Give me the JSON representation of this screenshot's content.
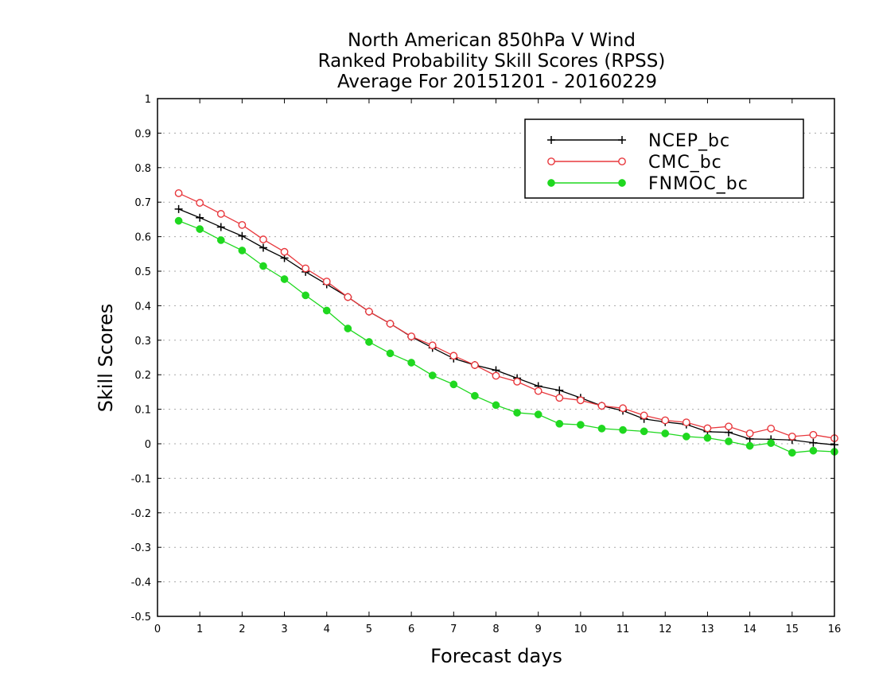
{
  "chart_data": {
    "type": "line",
    "title_lines": [
      "North American 850hPa V Wind",
      "Ranked Probability Skill Scores (RPSS)",
      "Average For 20151201 - 20160229"
    ],
    "xlabel": "Forecast days",
    "ylabel": "Skill Scores",
    "xlim": [
      0,
      16
    ],
    "ylim": [
      -0.5,
      1
    ],
    "x_ticks": [
      "0",
      "1",
      "2",
      "3",
      "4",
      "5",
      "6",
      "7",
      "8",
      "9",
      "10",
      "11",
      "12",
      "13",
      "14",
      "15",
      "16"
    ],
    "y_ticks": [
      "1",
      "0.9",
      "0.8",
      "0.7",
      "0.6",
      "0.5",
      "0.4",
      "0.3",
      "0.2",
      "0.1",
      "0",
      "-0.1",
      "-0.2",
      "-0.3",
      "-0.4",
      "-0.5"
    ],
    "grid": "horizontal dotted",
    "legend_position": "top-right",
    "x": [
      0.5,
      1,
      1.5,
      2,
      2.5,
      3,
      3.5,
      4,
      4.5,
      5,
      5.5,
      6,
      6.5,
      7,
      7.5,
      8,
      8.5,
      9,
      9.5,
      10,
      10.5,
      11,
      11.5,
      12,
      12.5,
      13,
      13.5,
      14,
      14.5,
      15,
      15.5,
      16
    ],
    "series": [
      {
        "name": "NCEP_bc",
        "color": "#000000",
        "marker": "plus",
        "values": [
          0.68,
          0.655,
          0.628,
          0.602,
          0.568,
          0.538,
          0.498,
          0.462,
          0.425,
          0.383,
          0.348,
          0.31,
          0.278,
          0.247,
          0.228,
          0.213,
          0.19,
          0.167,
          0.155,
          0.133,
          0.11,
          0.096,
          0.072,
          0.063,
          0.056,
          0.035,
          0.033,
          0.014,
          0.013,
          0.011,
          0.003,
          -0.003
        ]
      },
      {
        "name": "CMC_bc",
        "color": "#e8383d",
        "marker": "open-circle",
        "values": [
          0.726,
          0.698,
          0.666,
          0.634,
          0.592,
          0.556,
          0.508,
          0.47,
          0.425,
          0.383,
          0.348,
          0.311,
          0.285,
          0.255,
          0.228,
          0.197,
          0.18,
          0.153,
          0.133,
          0.126,
          0.11,
          0.103,
          0.082,
          0.068,
          0.062,
          0.045,
          0.05,
          0.03,
          0.044,
          0.021,
          0.026,
          0.016
        ]
      },
      {
        "name": "FNMOC_bc",
        "color": "#1fd81f",
        "marker": "filled-circle",
        "values": [
          0.646,
          0.622,
          0.59,
          0.56,
          0.515,
          0.477,
          0.43,
          0.386,
          0.334,
          0.295,
          0.262,
          0.235,
          0.198,
          0.172,
          0.139,
          0.112,
          0.09,
          0.085,
          0.058,
          0.055,
          0.044,
          0.04,
          0.036,
          0.03,
          0.021,
          0.017,
          0.007,
          -0.006,
          0.002,
          -0.026,
          -0.02,
          -0.023
        ]
      }
    ]
  }
}
